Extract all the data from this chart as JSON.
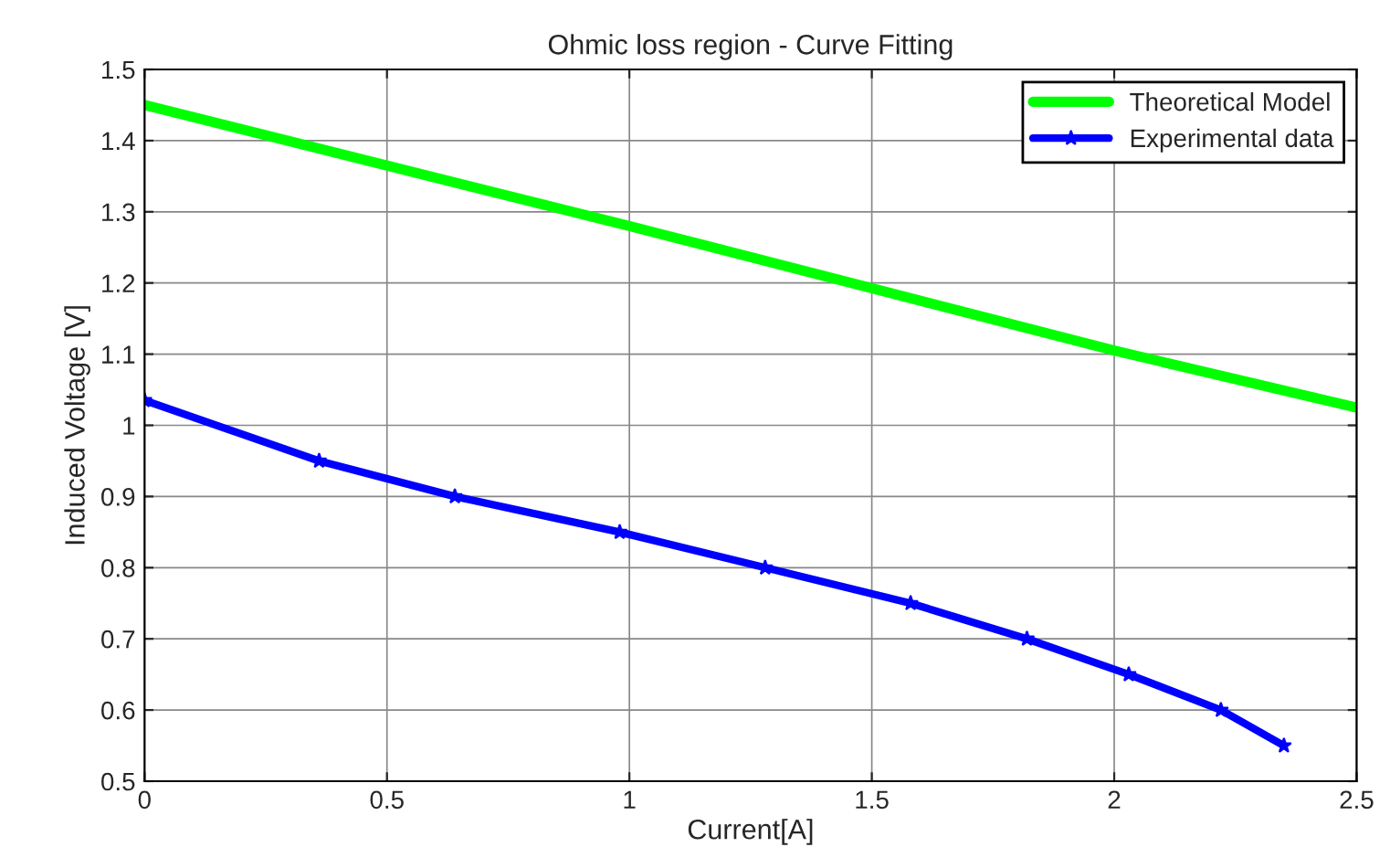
{
  "chart_data": {
    "type": "line",
    "title": "Ohmic loss region - Curve Fitting",
    "xlabel": "Current[A]",
    "ylabel": "Induced Voltage [V]",
    "series": [
      {
        "name": "Theoretical Model",
        "color": "#00ff00",
        "x": [
          0,
          1,
          2,
          2.5
        ],
        "values": [
          1.45,
          1.28,
          1.105,
          1.025
        ],
        "marker": "none"
      },
      {
        "name": "Experimental data",
        "color": "#0000ff",
        "x": [
          0,
          0.36,
          0.64,
          0.98,
          1.28,
          1.58,
          1.82,
          2.03,
          2.22,
          2.35
        ],
        "values": [
          1.035,
          0.95,
          0.9,
          0.85,
          0.8,
          0.75,
          0.7,
          0.65,
          0.6,
          0.55
        ],
        "marker": "star"
      }
    ],
    "xlim": [
      0,
      2.5
    ],
    "xticks": [
      0,
      0.5,
      1,
      1.5,
      2,
      2.5
    ],
    "ylim": [
      0.5,
      1.5
    ],
    "yticks": [
      0.5,
      0.6,
      0.7,
      0.8,
      0.9,
      1,
      1.1,
      1.2,
      1.3,
      1.4,
      1.5
    ],
    "grid": true,
    "legend": "top right",
    "line_style": "solid"
  }
}
